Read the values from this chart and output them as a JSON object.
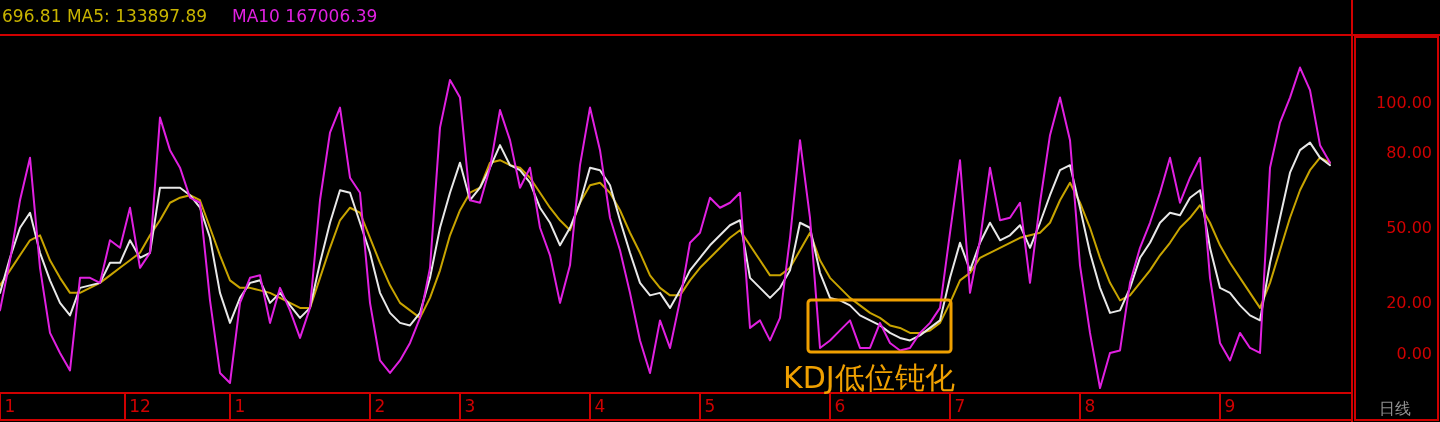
{
  "chart_data": {
    "type": "line",
    "annotations": [
      "696.81  MA5: 133897.89",
      "MA10  167006.39",
      "KDJ低位钝化",
      "日线"
    ],
    "categories": [
      null,
      "1",
      null,
      null,
      null,
      null,
      null,
      null,
      null,
      null,
      null,
      null,
      null,
      null,
      "12",
      null,
      null,
      null,
      null,
      null,
      null,
      null,
      null,
      null,
      "1",
      null,
      null,
      null,
      null,
      null,
      null,
      null,
      null,
      null,
      null,
      null,
      null,
      null,
      "2",
      null,
      null,
      null,
      null,
      null,
      null,
      null,
      null,
      "3",
      null,
      null,
      null,
      null,
      null,
      null,
      null,
      null,
      null,
      null,
      null,
      null,
      "4",
      null,
      null,
      null,
      null,
      null,
      null,
      null,
      null,
      null,
      null,
      "5",
      null,
      null,
      null,
      null,
      null,
      null,
      null,
      null,
      null,
      null,
      null,
      null,
      "6",
      null,
      null,
      null,
      null,
      null,
      null,
      null,
      null,
      null,
      null,
      null,
      "7",
      null,
      null,
      null,
      null,
      null,
      null,
      null,
      null,
      null,
      null,
      null,
      null,
      "8",
      null,
      null,
      null,
      null,
      null,
      null,
      null,
      null,
      null,
      null,
      null,
      null,
      null,
      "9",
      null,
      null,
      null,
      null,
      null,
      null,
      null,
      null,
      null,
      null
    ],
    "ylim": [
      -16,
      127
    ],
    "yticks": [
      {
        "value": 0,
        "label": "0.00"
      },
      {
        "value": 20,
        "label": "20.00"
      },
      {
        "value": 50,
        "label": "50.00"
      },
      {
        "value": 80,
        "label": "80.00"
      },
      {
        "value": 100,
        "label": "100.00"
      }
    ],
    "series": [
      {
        "color": "#c8a400",
        "values": [
          27,
          33,
          39,
          45,
          47,
          37,
          30,
          24,
          24,
          26,
          28,
          31,
          34,
          37,
          40,
          47,
          53,
          60,
          62,
          63,
          61,
          50,
          39,
          29,
          26,
          26,
          25,
          24,
          22,
          20,
          18,
          18,
          30,
          42,
          53,
          58,
          56,
          46,
          36,
          27,
          20,
          17,
          14,
          22,
          33,
          47,
          57,
          64,
          66,
          76,
          77,
          75,
          74,
          70,
          64,
          58,
          53,
          49,
          60,
          67,
          68,
          64,
          57,
          48,
          40,
          31,
          26,
          23,
          23,
          29,
          34,
          38,
          42,
          46,
          49,
          43,
          37,
          31,
          31,
          34,
          41,
          48,
          37,
          30,
          26,
          22,
          19,
          16,
          14,
          11,
          10,
          8,
          8,
          9,
          12,
          20,
          29,
          32,
          38,
          40,
          42,
          44,
          46,
          47,
          48,
          52,
          61,
          68,
          60,
          50,
          38,
          28,
          21,
          23,
          28,
          33,
          39,
          44,
          50,
          54,
          59,
          52,
          43,
          36,
          30,
          24,
          18,
          28,
          41,
          54,
          65,
          73,
          78,
          76
        ]
      },
      {
        "color": "#e8e8e8",
        "values": [
          24,
          38,
          50,
          56,
          40,
          29,
          20,
          15,
          26,
          27,
          28,
          36,
          36,
          45,
          38,
          40,
          66,
          66,
          66,
          63,
          58,
          46,
          24,
          12,
          22,
          28,
          29,
          20,
          24,
          19,
          14,
          18,
          36,
          52,
          65,
          64,
          52,
          40,
          24,
          16,
          12,
          11,
          16,
          30,
          50,
          64,
          76,
          61,
          66,
          74,
          83,
          75,
          73,
          68,
          58,
          52,
          43,
          50,
          60,
          74,
          73,
          67,
          53,
          40,
          28,
          23,
          24,
          18,
          25,
          33,
          38,
          43,
          47,
          51,
          53,
          30,
          26,
          22,
          26,
          33,
          52,
          50,
          32,
          22,
          21,
          19,
          15,
          13,
          11,
          8,
          6,
          5,
          7,
          10,
          13,
          30,
          44,
          33,
          44,
          52,
          45,
          47,
          51,
          42,
          52,
          63,
          73,
          75,
          58,
          40,
          26,
          16,
          17,
          26,
          38,
          44,
          52,
          56,
          55,
          62,
          65,
          42,
          26,
          24,
          19,
          15,
          13,
          36,
          54,
          72,
          81,
          84,
          78,
          75
        ]
      },
      {
        "color": "#e020e0",
        "values": [
          17,
          37,
          61,
          78,
          34,
          8,
          0,
          -7,
          30,
          30,
          28,
          45,
          42,
          58,
          34,
          40,
          94,
          81,
          74,
          62,
          60,
          21,
          -8,
          -12,
          20,
          30,
          31,
          12,
          26,
          17,
          6,
          18,
          61,
          88,
          98,
          70,
          64,
          20,
          -3,
          -8,
          -3,
          4,
          14,
          34,
          90,
          109,
          102,
          61,
          60,
          74,
          97,
          85,
          66,
          74,
          50,
          39,
          20,
          35,
          75,
          98,
          81,
          54,
          41,
          24,
          5,
          -8,
          13,
          2,
          21,
          44,
          48,
          62,
          58,
          60,
          64,
          10,
          13,
          5,
          14,
          46,
          85,
          54,
          2,
          5,
          9,
          13,
          2,
          2,
          12,
          4,
          1,
          2,
          8,
          12,
          18,
          48,
          77,
          24,
          45,
          74,
          53,
          54,
          60,
          28,
          60,
          87,
          102,
          85,
          35,
          8,
          -14,
          0,
          1,
          28,
          42,
          52,
          64,
          78,
          60,
          70,
          78,
          30,
          4,
          -3,
          8,
          2,
          0,
          74,
          92,
          102,
          114,
          105,
          83,
          76
        ]
      }
    ]
  }
}
